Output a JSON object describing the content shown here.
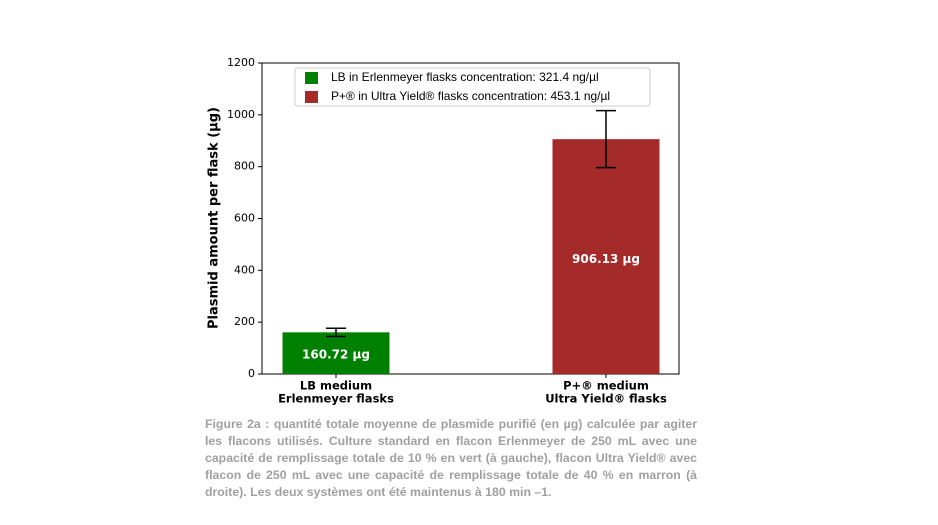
{
  "chart_data": {
    "type": "bar",
    "categories": [
      [
        "LB medium",
        "Erlenmeyer flasks"
      ],
      [
        "P+® medium",
        "Ultra Yield® flasks"
      ]
    ],
    "values": [
      160.72,
      906.13
    ],
    "value_labels": [
      "160.72 µg",
      "906.13 µg"
    ],
    "errors": [
      16,
      110
    ],
    "colors": [
      "#008000",
      "#a52a2a"
    ],
    "legend_labels": [
      "LB in Erlenmeyer flasks concentration: 321.4 ng/µl",
      "P+® in Ultra Yield® flasks concentration: 453.1 ng/µl"
    ],
    "ylabel": "Plasmid amount per flask (µg)",
    "ylim": [
      0,
      1200
    ],
    "yticks": [
      0,
      200,
      400,
      600,
      800,
      1000,
      1200
    ]
  },
  "caption": "Figure 2a : quantité totale moyenne de plasmide purifié (en µg) calculée par agiter les flacons utilisés. Culture standard en flacon Erlenmeyer de 250 mL avec une capacité de remplissage totale de 10 % en vert (à gauche), flacon Ultra Yield® avec flacon de 250 mL avec une capacité de remplissage totale de 40 % en marron (à droite). Les deux systèmes ont été maintenus à 180 min –1."
}
